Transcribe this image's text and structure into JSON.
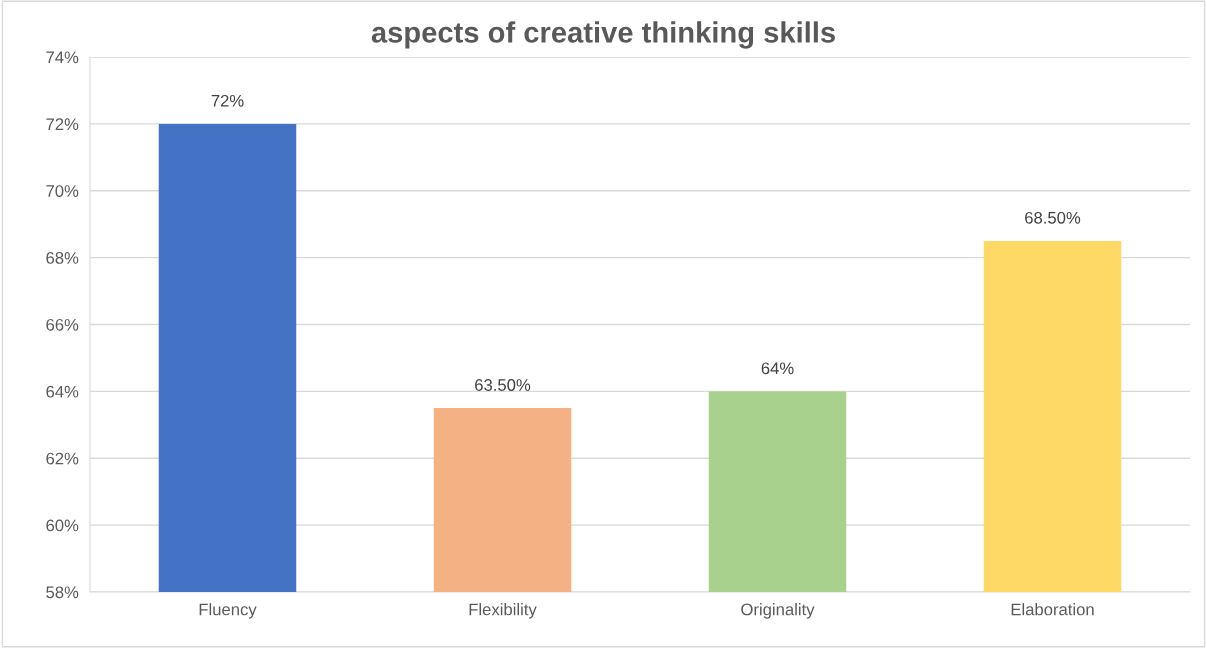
{
  "chart_data": {
    "type": "bar",
    "title": "aspects of creative thinking skills",
    "categories": [
      "Fluency",
      "Flexibility",
      "Originality",
      "Elaboration"
    ],
    "values": [
      72,
      63.5,
      64,
      68.5
    ],
    "colors": [
      "#4472c4",
      "#f4b183",
      "#a9d18e",
      "#ffd966"
    ],
    "value_labels": [
      "72%",
      "63.50%",
      "64%",
      "68.50%"
    ],
    "ylim": [
      58,
      74
    ],
    "yticks": [
      {
        "value": 58,
        "label": "58%"
      },
      {
        "value": 60,
        "label": "60%"
      },
      {
        "value": 62,
        "label": "62%"
      },
      {
        "value": 64,
        "label": "64%"
      },
      {
        "value": 66,
        "label": "66%"
      },
      {
        "value": 68,
        "label": "68%"
      },
      {
        "value": 70,
        "label": "70%"
      },
      {
        "value": 72,
        "label": "72%"
      },
      {
        "value": 74,
        "label": "74%"
      }
    ],
    "grid": "y",
    "legend": false
  }
}
